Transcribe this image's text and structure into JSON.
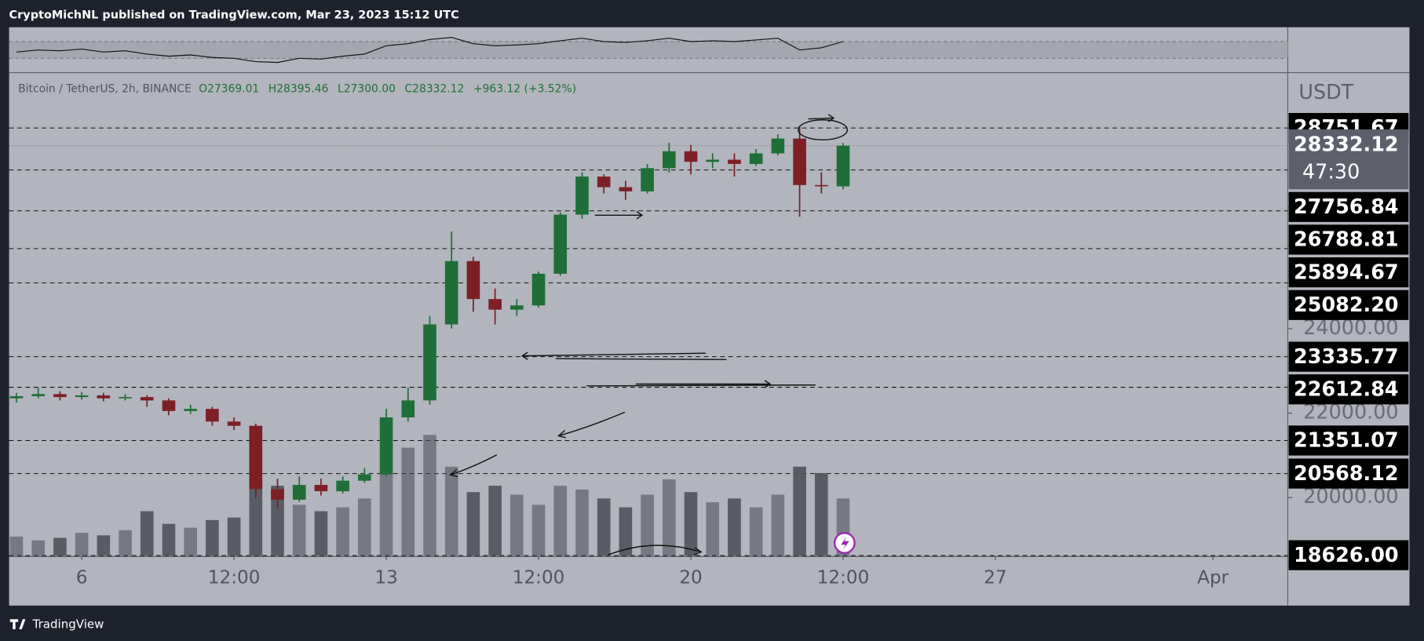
{
  "header": {
    "text": "CryptoMichNL published on TradingView.com, Mar 23, 2023 15:12 UTC"
  },
  "footer": {
    "brand": "TradingView"
  },
  "chart_data": {
    "type": "candlestick",
    "symbol": "Bitcoin / TetherUS, 2h, BINANCE",
    "legend_values": [
      "O27369.01",
      "H28395.46",
      "L27300.00",
      "C28332.12",
      "+963.12 (+3.52%)"
    ],
    "currency": "USDT",
    "x": [
      4.5,
      5.0,
      5.5,
      6.0,
      6.5,
      7.0,
      7.5,
      8.0,
      8.5,
      9.0,
      9.5,
      10.0,
      10.5,
      11.0,
      11.5,
      12.0,
      12.5,
      13.0,
      13.5,
      14.0,
      14.5,
      15.0,
      15.5,
      16.0,
      16.5,
      17.0,
      17.5,
      18.0,
      18.5,
      19.0,
      19.5,
      20.0,
      20.5,
      21.0,
      21.5,
      22.0,
      22.5,
      23.0,
      23.5
    ],
    "open": [
      22350,
      22400,
      22450,
      22380,
      22420,
      22350,
      22380,
      22300,
      22050,
      22100,
      21800,
      21700,
      20200,
      19950,
      20300,
      20150,
      20400,
      20550,
      21900,
      22300,
      24100,
      25600,
      24700,
      24450,
      24550,
      25300,
      26700,
      27600,
      27350,
      27250,
      27800,
      28200,
      27950,
      28000,
      27900,
      28150,
      28500,
      27400,
      27369.01
    ],
    "high": [
      22480,
      22600,
      22520,
      22500,
      22480,
      22450,
      22420,
      22350,
      22200,
      22150,
      21900,
      21750,
      20450,
      20500,
      20450,
      20500,
      20700,
      22100,
      22600,
      24300,
      26300,
      25700,
      24950,
      24700,
      25350,
      26750,
      27700,
      27650,
      27500,
      27900,
      28400,
      28350,
      28150,
      28150,
      28250,
      28600,
      28780,
      27700,
      28395.46
    ],
    "low": [
      22250,
      22350,
      22300,
      22320,
      22280,
      22300,
      22150,
      21950,
      21980,
      21700,
      21600,
      20000,
      19750,
      19900,
      20050,
      20100,
      20350,
      20500,
      21800,
      22200,
      24000,
      24400,
      24100,
      24300,
      24500,
      25250,
      26600,
      27200,
      27050,
      27200,
      27700,
      27650,
      27800,
      27600,
      27850,
      28100,
      26650,
      27200,
      27300
    ],
    "close": [
      22400,
      22450,
      22380,
      22420,
      22350,
      22380,
      22300,
      22050,
      22100,
      21800,
      21700,
      20200,
      19950,
      20300,
      20150,
      20400,
      20550,
      21900,
      22300,
      24100,
      25600,
      24700,
      24450,
      24550,
      25300,
      26700,
      27600,
      27350,
      27250,
      27800,
      28200,
      27950,
      28000,
      27900,
      28150,
      28500,
      27400,
      27369.01,
      28332.12
    ],
    "up_color": "#1f6e37",
    "down_color": "#7e1f26",
    "volume": {
      "values": [
        15,
        12,
        14,
        18,
        16,
        20,
        35,
        25,
        22,
        28,
        30,
        60,
        55,
        40,
        35,
        38,
        45,
        70,
        85,
        95,
        70,
        50,
        55,
        48,
        40,
        55,
        52,
        45,
        38,
        48,
        60,
        50,
        42,
        45,
        38,
        48,
        70,
        65,
        45
      ],
      "ylim": [
        0,
        100
      ],
      "color": "#4f525b"
    },
    "rsi": {
      "values": [
        45,
        50,
        48,
        52,
        45,
        48,
        40,
        35,
        38,
        32,
        30,
        22,
        20,
        30,
        28,
        35,
        40,
        60,
        65,
        75,
        80,
        65,
        60,
        62,
        65,
        72,
        78,
        70,
        68,
        72,
        78,
        70,
        72,
        70,
        74,
        78,
        50,
        55,
        70
      ],
      "ylim": [
        0,
        100
      ],
      "bands": [
        30,
        70
      ],
      "color": "#111111"
    },
    "xlim": [
      4.33,
      33.72
    ],
    "xticks": [
      6,
      {
        "value": 9.5,
        "label": "12:00"
      },
      13,
      {
        "value": 16.5,
        "label": "12:00"
      },
      20,
      {
        "value": 23.5,
        "label": "12:00"
      },
      27,
      {
        "value": 32,
        "label": "Apr"
      }
    ],
    "ylim": [
      18625,
      30040
    ],
    "yticks": [
      {
        "value": 24000,
        "label": "24000.00"
      },
      {
        "value": 22000,
        "label": "22000.00"
      },
      {
        "value": 20000,
        "label": "20000.00"
      }
    ],
    "levels": [
      28751.67,
      27756.84,
      26788.81,
      25894.67,
      {
        "value": 25082.2,
        "label": "25082.20"
      },
      23335.77,
      22612.84,
      21351.07,
      20568.12,
      {
        "value": 18626,
        "label": "18626.00"
      }
    ],
    "last_price": 28332.12,
    "countdown": "47:30"
  }
}
